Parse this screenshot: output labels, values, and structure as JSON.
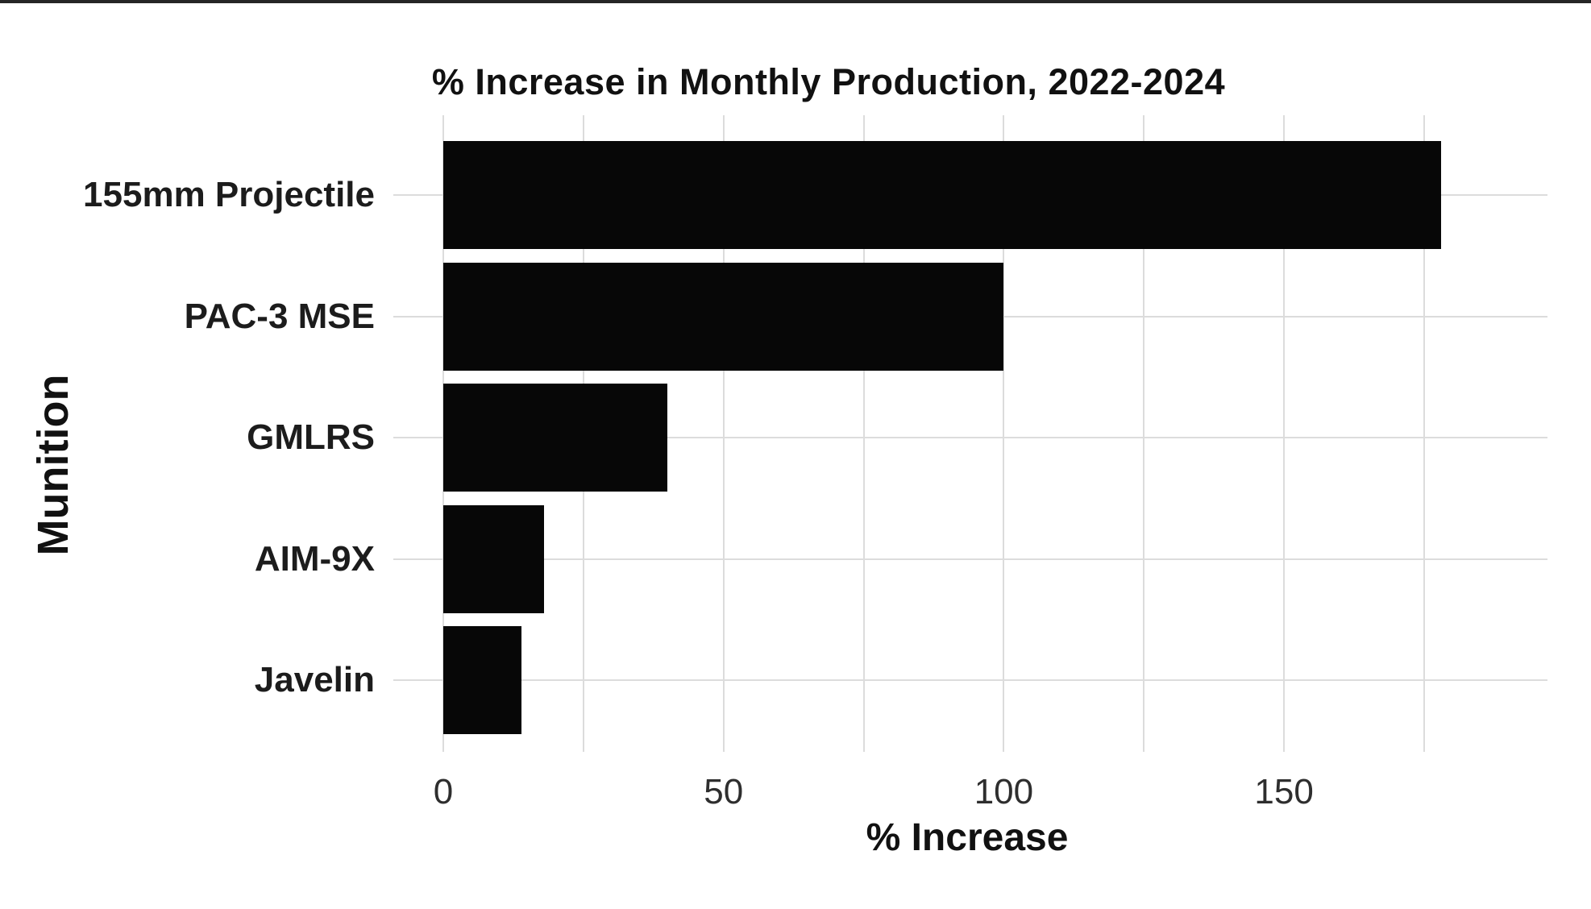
{
  "page": {
    "background": "#ffffff",
    "top_border_color": "#262626"
  },
  "chart_data": {
    "type": "bar",
    "orientation": "horizontal",
    "title": "% Increase in Monthly Production, 2022-2024",
    "xlabel": "% Increase",
    "ylabel": "Munition",
    "categories": [
      "155mm Projectile",
      "PAC-3 MSE",
      "GMLRS",
      "AIM-9X",
      "Javelin"
    ],
    "values": [
      178,
      100,
      40,
      18,
      14
    ],
    "xlim": [
      0,
      197
    ],
    "xticks": [
      0,
      50,
      100,
      150
    ],
    "x_minor_step": 25,
    "grid": true,
    "legend": false,
    "bar_color": "#070707",
    "grid_color": "#dcdcdc",
    "tick_label_color": "#2e2e2e",
    "text_color": "#111111"
  }
}
